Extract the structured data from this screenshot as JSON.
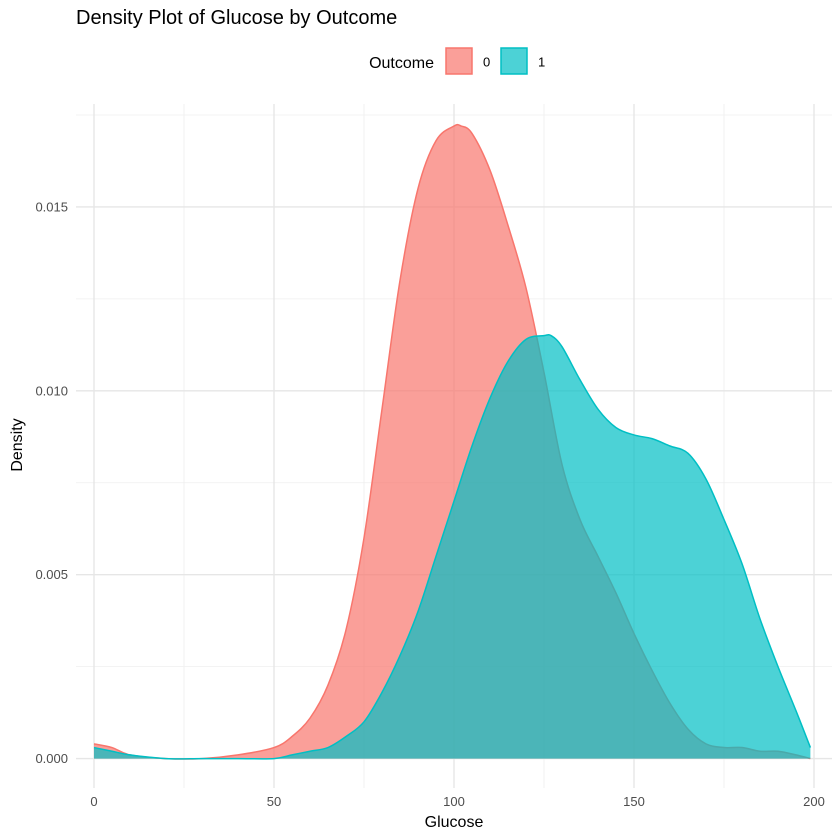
{
  "chart_data": {
    "type": "area",
    "title": "Density Plot of Glucose by Outcome",
    "xlabel": "Glucose",
    "ylabel": "Density",
    "xlim": [
      -5,
      205
    ],
    "ylim": [
      -0.0008,
      0.0178
    ],
    "x_ticks": [
      0,
      50,
      100,
      150,
      200
    ],
    "x_tick_labels": [
      "0",
      "50",
      "100",
      "150",
      "200"
    ],
    "y_ticks": [
      0,
      0.005,
      0.01,
      0.015
    ],
    "y_tick_labels": [
      "0.000",
      "0.005",
      "0.010",
      "0.015"
    ],
    "grid": true,
    "legend": {
      "title": "Outcome",
      "position": "top"
    },
    "series": [
      {
        "name": "0",
        "fill": "#F8766D",
        "x": [
          0,
          5,
          10,
          20,
          30,
          40,
          50,
          55,
          60,
          65,
          70,
          75,
          80,
          85,
          90,
          95,
          100,
          102,
          105,
          110,
          115,
          120,
          125,
          130,
          135,
          140,
          145,
          150,
          155,
          160,
          165,
          170,
          175,
          180,
          185,
          190,
          195,
          199
        ],
        "values": [
          0.0004,
          0.0003,
          0.0001,
          0.0,
          0.0,
          0.0001,
          0.0003,
          0.0006,
          0.0011,
          0.002,
          0.0035,
          0.006,
          0.0095,
          0.013,
          0.0155,
          0.0168,
          0.0172,
          0.0172,
          0.017,
          0.016,
          0.0145,
          0.0128,
          0.0105,
          0.008,
          0.0065,
          0.0055,
          0.0045,
          0.0034,
          0.0024,
          0.0015,
          0.0008,
          0.0004,
          0.0003,
          0.0003,
          0.0002,
          0.0002,
          0.0001,
          0.0
        ]
      },
      {
        "name": "1",
        "fill": "#00BFC4",
        "x": [
          0,
          5,
          10,
          20,
          30,
          40,
          50,
          55,
          60,
          65,
          70,
          75,
          80,
          85,
          90,
          95,
          100,
          105,
          110,
          115,
          120,
          125,
          127,
          130,
          135,
          140,
          145,
          150,
          155,
          160,
          165,
          170,
          175,
          180,
          185,
          190,
          195,
          199
        ],
        "values": [
          0.0003,
          0.0002,
          0.0001,
          0.0,
          0.0,
          0.0,
          0.0,
          0.0001,
          0.0002,
          0.0003,
          0.0006,
          0.001,
          0.0018,
          0.0028,
          0.004,
          0.0055,
          0.007,
          0.0085,
          0.0098,
          0.0108,
          0.0114,
          0.0115,
          0.0115,
          0.0112,
          0.0103,
          0.0095,
          0.009,
          0.0088,
          0.0087,
          0.0085,
          0.0083,
          0.0076,
          0.0065,
          0.0053,
          0.0038,
          0.0025,
          0.0013,
          0.0003
        ]
      }
    ]
  }
}
